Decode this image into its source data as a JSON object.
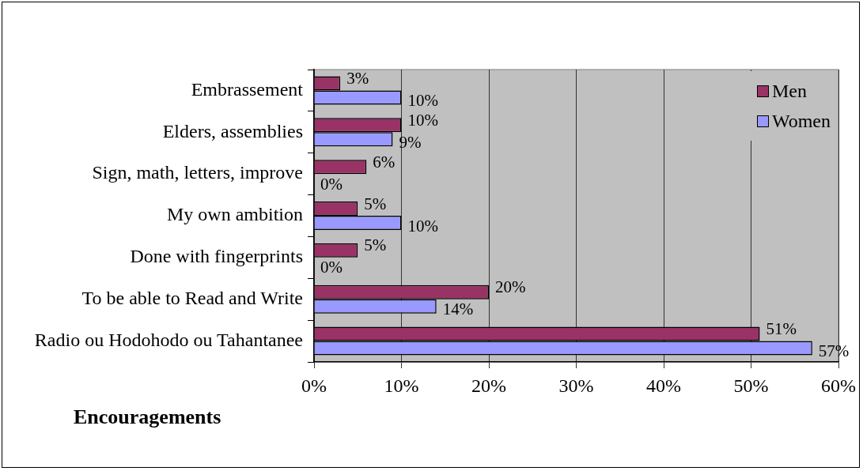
{
  "chart_data": {
    "type": "bar",
    "orientation": "horizontal",
    "title": "Encouragements",
    "categories": [
      "Embrassement",
      "Elders, assemblies",
      "Sign, math, letters, improve",
      "My own ambition",
      "Done with fingerprints",
      "To be able to Read and Write",
      "Radio ou Hodohodo ou Tahantanee"
    ],
    "series": [
      {
        "name": "Men",
        "color": "#993366",
        "values": [
          3,
          10,
          6,
          5,
          5,
          20,
          51
        ],
        "value_labels": [
          "3%",
          "10%",
          "6%",
          "5%",
          "5%",
          "20%",
          "51%"
        ]
      },
      {
        "name": "Women",
        "color": "#9999ff",
        "values": [
          10,
          9,
          0,
          10,
          0,
          14,
          57
        ],
        "value_labels": [
          "10%",
          "9%",
          "0%",
          "10%",
          "0%",
          "14%",
          "57%"
        ]
      }
    ],
    "xlim": [
      0,
      60
    ],
    "xticks": [
      {
        "value": 0,
        "label": "0%"
      },
      {
        "value": 10,
        "label": "10%"
      },
      {
        "value": 20,
        "label": "20%"
      },
      {
        "value": 30,
        "label": "30%"
      },
      {
        "value": 40,
        "label": "40%"
      },
      {
        "value": 50,
        "label": "50%"
      },
      {
        "value": 60,
        "label": "60%"
      }
    ],
    "grid": "x",
    "legend": "top right"
  }
}
